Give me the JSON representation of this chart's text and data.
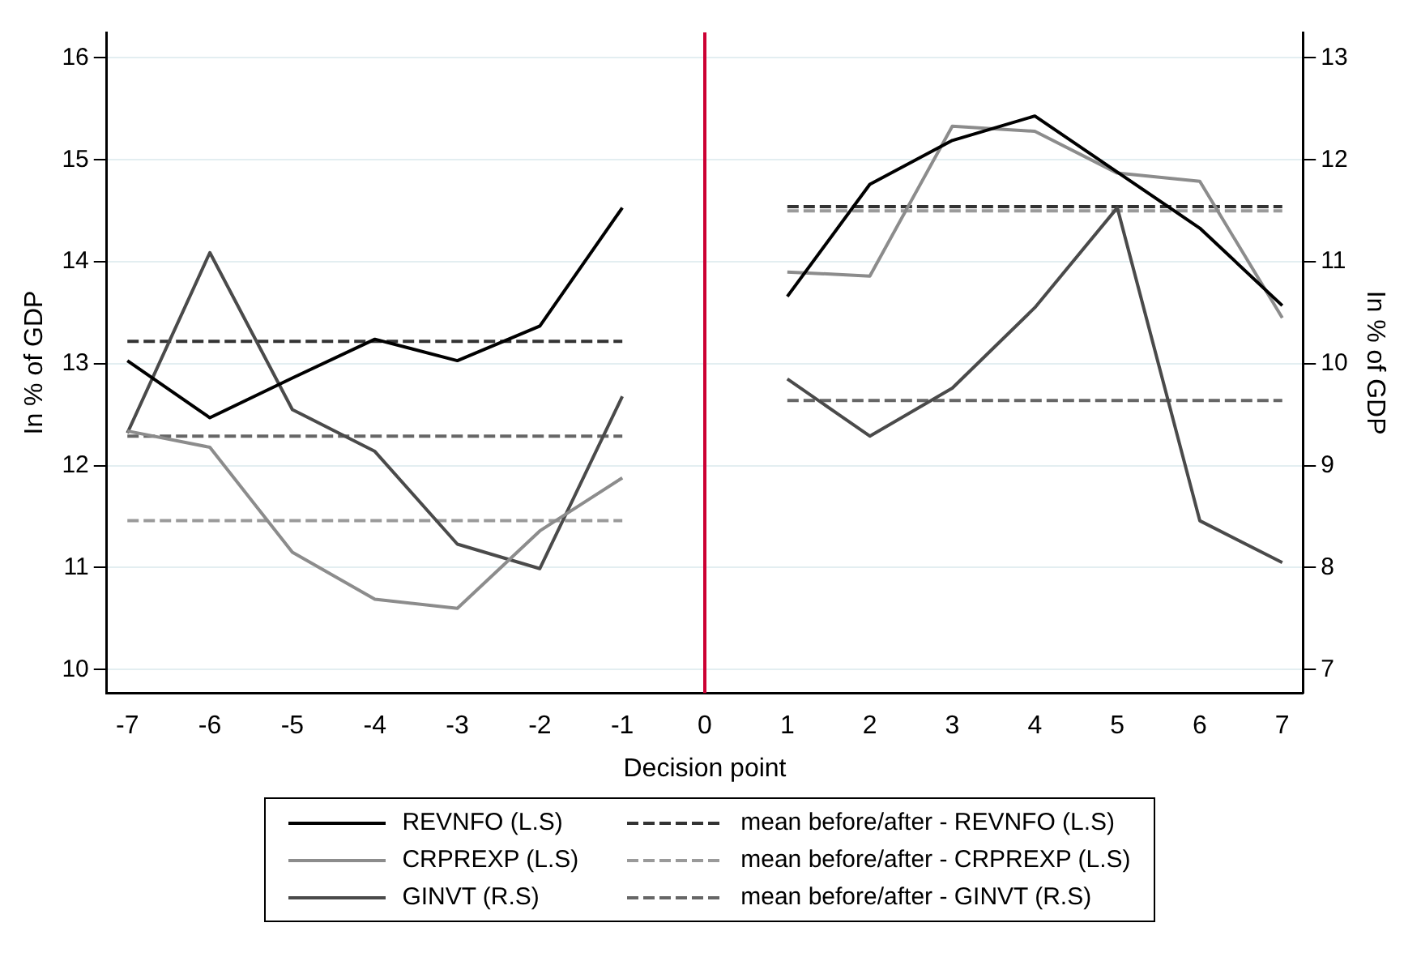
{
  "chart_data": {
    "type": "line",
    "xlabel": "Decision point",
    "ylabel": "In % of GDP",
    "y2label": "In % of GDP",
    "xlim": [
      -7.25,
      7.25
    ],
    "xticks": [
      -7,
      -6,
      -5,
      -4,
      -3,
      -2,
      -1,
      0,
      1,
      2,
      3,
      4,
      5,
      6,
      7
    ],
    "ylim": [
      9.77,
      16.25
    ],
    "yticks": [
      10,
      11,
      12,
      13,
      14,
      15,
      16
    ],
    "y2lim": [
      6.77,
      13.25
    ],
    "y2ticks": [
      7,
      8,
      9,
      10,
      11,
      12,
      13
    ],
    "grid": "y",
    "legend": "bottom",
    "marker": "none",
    "ref_lines": [
      {
        "axis": "x",
        "value": 0,
        "color": "#cc0033"
      }
    ],
    "series": [
      {
        "name": "REVNFO (L.S)",
        "color": "#000000",
        "x": [
          -7,
          -6,
          -5,
          -4,
          -3,
          -2,
          -1,
          0,
          1,
          2,
          3,
          4,
          5,
          6,
          7
        ],
        "values": [
          13.03,
          12.47,
          12.86,
          13.24,
          13.03,
          13.37,
          14.53,
          null,
          13.66,
          14.76,
          15.19,
          15.43,
          14.88,
          14.33,
          13.57
        ]
      },
      {
        "name": "CRPREXP (L.S)",
        "color": "#8c8c8c",
        "x": [
          -7,
          -6,
          -5,
          -4,
          -3,
          -2,
          -1,
          0,
          1,
          2,
          3,
          4,
          5,
          6,
          7
        ],
        "values": [
          12.34,
          12.18,
          11.15,
          10.69,
          10.6,
          11.36,
          11.88,
          null,
          13.9,
          13.86,
          15.33,
          15.28,
          14.87,
          14.79,
          13.45
        ]
      },
      {
        "name": "GINVT (R.S)",
        "color": "#4a4a4a",
        "axis": "y2",
        "x": [
          -7,
          -6,
          -5,
          -4,
          -3,
          -2,
          -1,
          0,
          1,
          2,
          3,
          4,
          5,
          6,
          7
        ],
        "values": [
          9.32,
          11.09,
          9.55,
          9.14,
          8.23,
          7.99,
          9.68,
          null,
          9.85,
          9.29,
          9.76,
          10.55,
          11.53,
          8.46,
          8.05
        ]
      },
      {
        "name": "mean before/after - REVNFO (L.S)",
        "color": "#333333",
        "line_style": "dashed",
        "x": [
          -7,
          -1,
          0,
          1,
          7
        ],
        "values": [
          13.22,
          13.22,
          null,
          14.54,
          14.54
        ]
      },
      {
        "name": "mean before/after - CRPREXP (L.S)",
        "color": "#9a9a9a",
        "line_style": "dashed",
        "x": [
          -7,
          -1,
          0,
          1,
          7
        ],
        "values": [
          11.46,
          11.46,
          null,
          14.5,
          14.5
        ]
      },
      {
        "name": "mean before/after - GINVT (R.S)",
        "color": "#666666",
        "line_style": "dashed",
        "axis": "y2",
        "x": [
          -7,
          -1,
          0,
          1,
          7
        ],
        "values": [
          9.29,
          9.29,
          null,
          9.64,
          9.64
        ]
      }
    ]
  }
}
